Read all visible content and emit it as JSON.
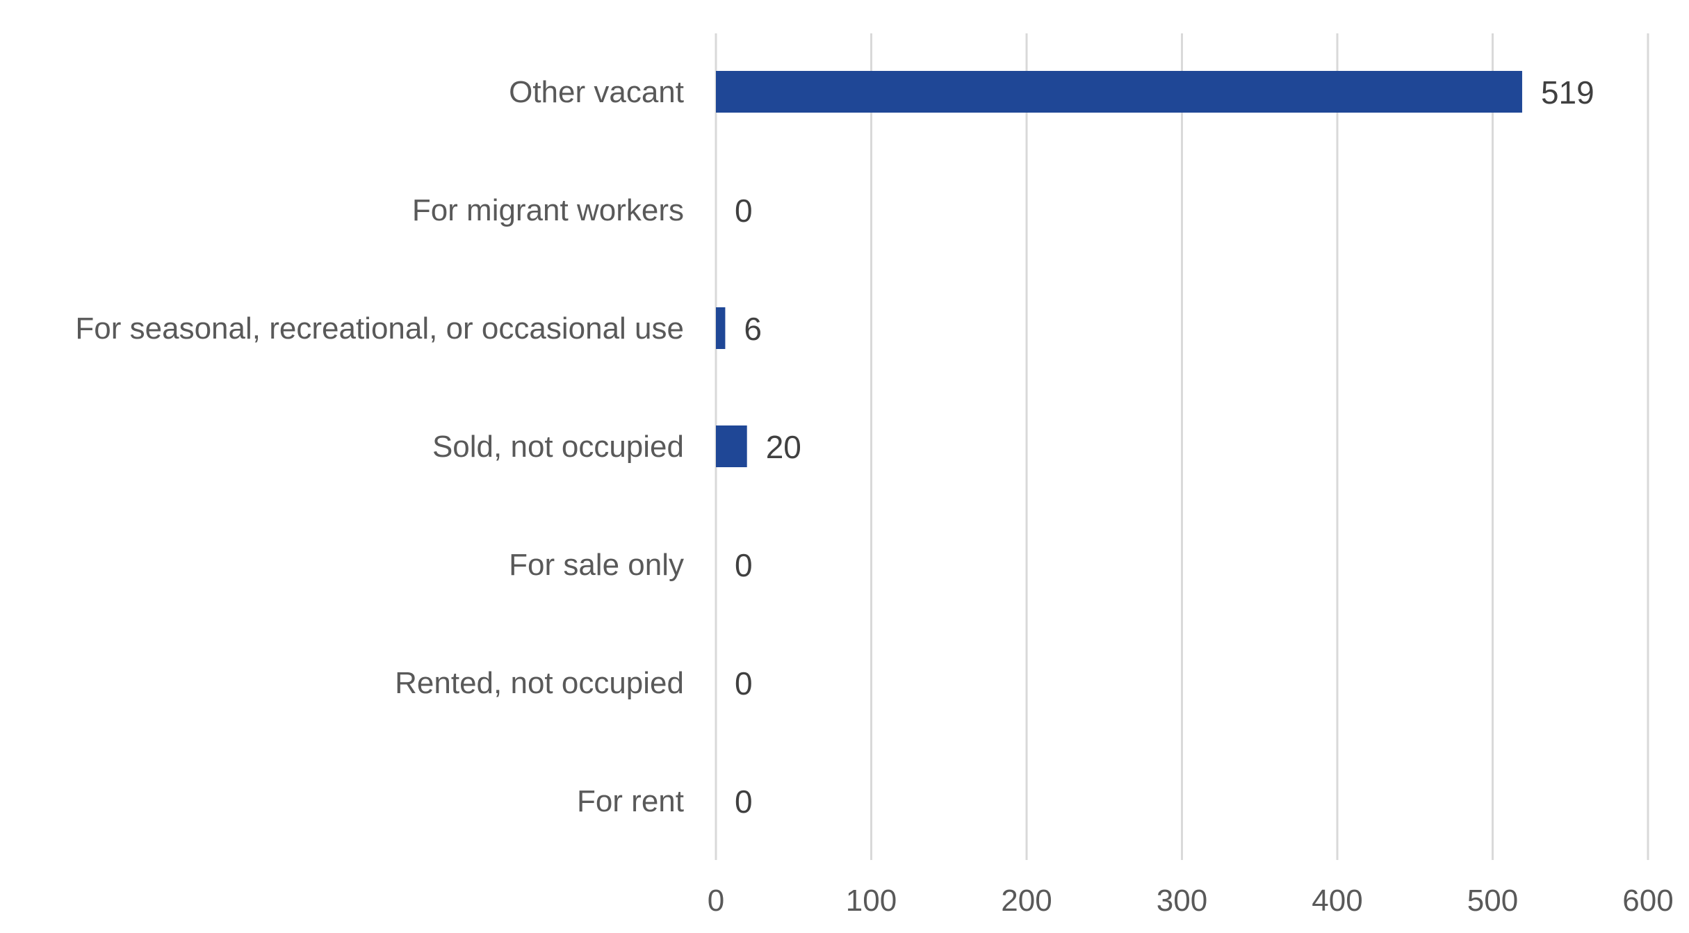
{
  "chart_data": {
    "type": "bar",
    "orientation": "horizontal",
    "title": "",
    "xlabel": "",
    "ylabel": "",
    "categories": [
      "Other vacant",
      "For migrant workers",
      "For seasonal, recreational, or occasional use",
      "Sold, not occupied",
      "For sale only",
      "Rented, not occupied",
      "For rent"
    ],
    "values": [
      519,
      0,
      6,
      20,
      0,
      0,
      0
    ],
    "data_labels": [
      "519",
      "0",
      "6",
      "20",
      "0",
      "0",
      "0"
    ],
    "xlim": [
      0,
      600
    ],
    "xticks": [
      0,
      100,
      200,
      300,
      400,
      500,
      600
    ],
    "xtick_labels": [
      "0",
      "100",
      "200",
      "300",
      "400",
      "500",
      "600"
    ],
    "grid": true,
    "legend": "none",
    "bar_color": "#1f4796"
  }
}
